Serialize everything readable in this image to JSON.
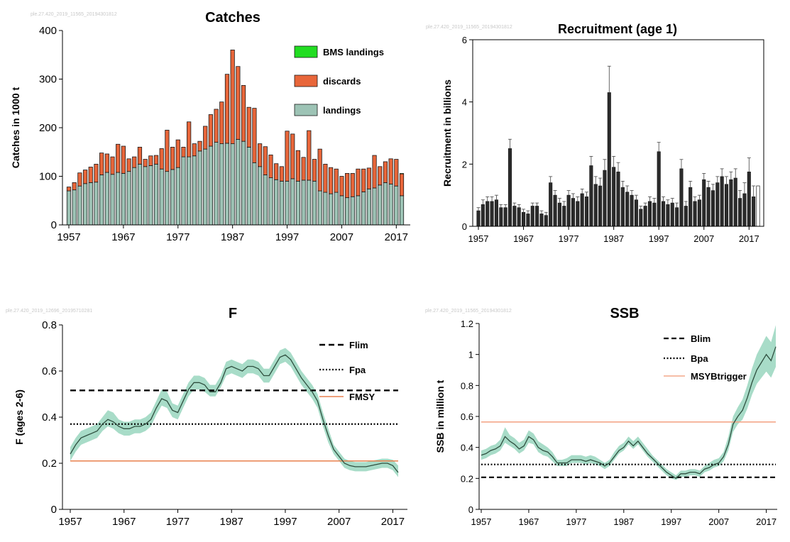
{
  "colors": {
    "landings": "#9dc3b5",
    "discards": "#e8663a",
    "bms": "#22dd22",
    "recruitment": "#2b2b2b",
    "band": "#a8dcc8",
    "line": "#2f4f3f",
    "reference": "#e8804e",
    "reference_light": "#f4a78a"
  },
  "chart_data": [
    {
      "type": "bar",
      "title": "Catches",
      "watermark": "ple.27.420_2019_11565_20194301812",
      "ylabel": "Catches in 1000 t",
      "xlabel": "",
      "ylim": [
        0,
        400
      ],
      "yticks": [
        "0",
        "100",
        "200",
        "300",
        "400"
      ],
      "xticks": [
        "1957",
        "1967",
        "1977",
        "1987",
        "1997",
        "2007",
        "2017"
      ],
      "legend": {
        "position": "top-right",
        "entries": [
          "BMS landings",
          "discards",
          "landings"
        ]
      },
      "x": [
        1957,
        1958,
        1959,
        1960,
        1961,
        1962,
        1963,
        1964,
        1965,
        1966,
        1967,
        1968,
        1969,
        1970,
        1971,
        1972,
        1973,
        1974,
        1975,
        1976,
        1977,
        1978,
        1979,
        1980,
        1981,
        1982,
        1983,
        1984,
        1985,
        1986,
        1987,
        1988,
        1989,
        1990,
        1991,
        1992,
        1993,
        1994,
        1995,
        1996,
        1997,
        1998,
        1999,
        2000,
        2001,
        2002,
        2003,
        2004,
        2005,
        2006,
        2007,
        2008,
        2009,
        2010,
        2011,
        2012,
        2013,
        2014,
        2015,
        2016,
        2017,
        2018
      ],
      "series": [
        {
          "name": "landings",
          "values": [
            70,
            72,
            80,
            85,
            87,
            88,
            103,
            108,
            104,
            108,
            106,
            110,
            118,
            125,
            120,
            122,
            125,
            115,
            110,
            114,
            118,
            140,
            140,
            142,
            152,
            156,
            162,
            170,
            167,
            168,
            167,
            176,
            172,
            160,
            128,
            120,
            103,
            97,
            93,
            90,
            90,
            95,
            90,
            92,
            92,
            90,
            70,
            67,
            64,
            67,
            60,
            56,
            58,
            60,
            68,
            74,
            76,
            82,
            87,
            84,
            80,
            60
          ]
        },
        {
          "name": "discards",
          "values": [
            8,
            15,
            27,
            28,
            32,
            37,
            45,
            38,
            36,
            58,
            56,
            26,
            22,
            35,
            15,
            20,
            18,
            42,
            85,
            46,
            57,
            20,
            72,
            25,
            20,
            47,
            65,
            68,
            86,
            142,
            193,
            150,
            115,
            82,
            112,
            47,
            58,
            47,
            33,
            30,
            103,
            92,
            63,
            47,
            102,
            45,
            86,
            58,
            54,
            48,
            40,
            50,
            48,
            55,
            47,
            43,
            67,
            38,
            43,
            52,
            55,
            45
          ]
        },
        {
          "name": "BMS landings",
          "values": [
            0,
            0,
            0,
            0,
            0,
            0,
            0,
            0,
            0,
            0,
            0,
            0,
            0,
            0,
            0,
            0,
            0,
            0,
            0,
            0,
            0,
            0,
            0,
            0,
            0,
            0,
            0,
            0,
            0,
            0,
            0,
            0,
            0,
            0,
            0,
            0,
            0,
            0,
            0,
            0,
            0,
            0,
            0,
            0,
            0,
            0,
            0,
            0,
            0,
            0,
            0,
            0,
            0,
            0,
            0,
            0,
            0,
            0,
            0,
            0,
            0,
            1
          ]
        }
      ]
    },
    {
      "type": "bar",
      "title": "Recruitment (age 1)",
      "watermark": "ple.27.420_2019_11565_20194301812",
      "ylabel": "Recruitment in billions",
      "xlabel": "",
      "ylim": [
        0,
        6
      ],
      "yticks": [
        "0",
        "2",
        "4",
        "6"
      ],
      "xticks": [
        "1957",
        "1967",
        "1977",
        "1987",
        "1997",
        "2007",
        "2017"
      ],
      "x": [
        1957,
        1958,
        1959,
        1960,
        1961,
        1962,
        1963,
        1964,
        1965,
        1966,
        1967,
        1968,
        1969,
        1970,
        1971,
        1972,
        1973,
        1974,
        1975,
        1976,
        1977,
        1978,
        1979,
        1980,
        1981,
        1982,
        1983,
        1984,
        1985,
        1986,
        1987,
        1988,
        1989,
        1990,
        1991,
        1992,
        1993,
        1994,
        1995,
        1996,
        1997,
        1998,
        1999,
        2000,
        2001,
        2002,
        2003,
        2004,
        2005,
        2006,
        2007,
        2008,
        2009,
        2010,
        2011,
        2012,
        2013,
        2014,
        2015,
        2016,
        2017,
        2018,
        2019
      ],
      "values": [
        0.5,
        0.7,
        0.8,
        0.8,
        0.85,
        0.6,
        0.6,
        2.5,
        0.65,
        0.6,
        0.45,
        0.4,
        0.65,
        0.65,
        0.4,
        0.35,
        1.4,
        1.0,
        0.75,
        0.65,
        1.0,
        0.9,
        0.8,
        1.05,
        0.95,
        1.95,
        1.35,
        1.3,
        1.8,
        4.3,
        1.9,
        1.75,
        1.25,
        1.1,
        1.0,
        0.85,
        0.55,
        0.65,
        0.8,
        0.75,
        2.4,
        0.8,
        0.7,
        0.75,
        0.6,
        1.85,
        0.65,
        1.25,
        0.8,
        0.85,
        1.5,
        1.25,
        1.15,
        1.4,
        1.6,
        1.35,
        1.5,
        1.55,
        0.9,
        1.05,
        1.75,
        0.95,
        1.3
      ],
      "upper": [
        0.6,
        0.85,
        0.95,
        0.95,
        1.0,
        0.7,
        0.7,
        2.8,
        0.75,
        0.7,
        0.55,
        0.5,
        0.75,
        0.75,
        0.5,
        0.45,
        1.6,
        1.15,
        0.9,
        0.8,
        1.15,
        1.05,
        0.95,
        1.2,
        1.1,
        2.25,
        1.6,
        1.55,
        2.15,
        5.15,
        2.25,
        2.05,
        1.45,
        1.3,
        1.15,
        1.0,
        0.65,
        0.75,
        0.95,
        0.9,
        2.7,
        0.95,
        0.85,
        0.9,
        0.75,
        2.15,
        0.8,
        1.45,
        0.95,
        1.0,
        1.7,
        1.45,
        1.35,
        1.6,
        1.85,
        1.6,
        1.75,
        1.85,
        1.15,
        1.4,
        2.2,
        1.3,
        null
      ]
    },
    {
      "type": "line",
      "title": "F",
      "watermark": "ple.27.420_2019_12696_20195710281",
      "ylabel": "F (ages 2-6)",
      "xlabel": "",
      "ylim": [
        0,
        0.8
      ],
      "yticks": [
        "0",
        "0.2",
        "0.4",
        "0.6",
        "0.8"
      ],
      "xticks": [
        "1957",
        "1967",
        "1977",
        "1987",
        "1997",
        "2007",
        "2017"
      ],
      "legend": {
        "position": "top-right",
        "entries": [
          "Flim",
          "Fpa",
          "FMSY"
        ]
      },
      "reference_lines": {
        "Flim": 0.516,
        "Fpa": 0.37,
        "FMSY": 0.21
      },
      "x": [
        1957,
        1958,
        1959,
        1960,
        1961,
        1962,
        1963,
        1964,
        1965,
        1966,
        1967,
        1968,
        1969,
        1970,
        1971,
        1972,
        1973,
        1974,
        1975,
        1976,
        1977,
        1978,
        1979,
        1980,
        1981,
        1982,
        1983,
        1984,
        1985,
        1986,
        1987,
        1988,
        1989,
        1990,
        1991,
        1992,
        1993,
        1994,
        1995,
        1996,
        1997,
        1998,
        1999,
        2000,
        2001,
        2002,
        2003,
        2004,
        2005,
        2006,
        2007,
        2008,
        2009,
        2010,
        2011,
        2012,
        2013,
        2014,
        2015,
        2016,
        2017,
        2018
      ],
      "values": [
        0.24,
        0.28,
        0.31,
        0.32,
        0.33,
        0.34,
        0.37,
        0.39,
        0.38,
        0.36,
        0.35,
        0.35,
        0.36,
        0.36,
        0.37,
        0.39,
        0.44,
        0.48,
        0.47,
        0.43,
        0.42,
        0.47,
        0.52,
        0.55,
        0.55,
        0.54,
        0.51,
        0.51,
        0.55,
        0.61,
        0.62,
        0.61,
        0.6,
        0.62,
        0.62,
        0.61,
        0.58,
        0.58,
        0.62,
        0.66,
        0.67,
        0.65,
        0.61,
        0.57,
        0.54,
        0.51,
        0.47,
        0.39,
        0.32,
        0.26,
        0.23,
        0.2,
        0.19,
        0.185,
        0.185,
        0.185,
        0.19,
        0.195,
        0.2,
        0.2,
        0.19,
        0.16
      ],
      "lower": [
        0.21,
        0.25,
        0.28,
        0.29,
        0.3,
        0.31,
        0.34,
        0.36,
        0.35,
        0.33,
        0.32,
        0.32,
        0.33,
        0.33,
        0.34,
        0.36,
        0.41,
        0.45,
        0.44,
        0.4,
        0.39,
        0.44,
        0.49,
        0.52,
        0.52,
        0.51,
        0.49,
        0.49,
        0.53,
        0.58,
        0.59,
        0.58,
        0.57,
        0.59,
        0.59,
        0.58,
        0.55,
        0.55,
        0.59,
        0.63,
        0.64,
        0.62,
        0.58,
        0.54,
        0.51,
        0.48,
        0.44,
        0.36,
        0.29,
        0.24,
        0.21,
        0.18,
        0.17,
        0.165,
        0.165,
        0.165,
        0.17,
        0.175,
        0.18,
        0.18,
        0.17,
        0.14
      ],
      "upper": [
        0.27,
        0.31,
        0.34,
        0.35,
        0.36,
        0.37,
        0.4,
        0.43,
        0.42,
        0.39,
        0.38,
        0.38,
        0.39,
        0.39,
        0.4,
        0.42,
        0.47,
        0.52,
        0.51,
        0.46,
        0.45,
        0.5,
        0.55,
        0.58,
        0.58,
        0.57,
        0.54,
        0.54,
        0.58,
        0.64,
        0.65,
        0.64,
        0.63,
        0.65,
        0.65,
        0.64,
        0.61,
        0.61,
        0.65,
        0.69,
        0.7,
        0.68,
        0.64,
        0.6,
        0.57,
        0.54,
        0.5,
        0.42,
        0.35,
        0.28,
        0.25,
        0.22,
        0.21,
        0.205,
        0.205,
        0.205,
        0.21,
        0.215,
        0.22,
        0.22,
        0.215,
        0.19
      ]
    },
    {
      "type": "line",
      "title": "SSB",
      "watermark": "ple.27.420_2019_11565_20194301812",
      "ylabel": "SSB in million t",
      "xlabel": "",
      "ylim": [
        0,
        1.2
      ],
      "yticks": [
        "0",
        "0.2",
        "0.4",
        "0.6",
        "0.8",
        "1",
        "1.2"
      ],
      "xticks": [
        "1957",
        "1967",
        "1977",
        "1987",
        "1997",
        "2007",
        "2017"
      ],
      "legend": {
        "position": "top-right",
        "entries": [
          "Blim",
          "Bpa",
          "MSYBtrigger"
        ]
      },
      "reference_lines": {
        "Blim": 0.207,
        "Bpa": 0.29,
        "MSYBtrigger": 0.564
      },
      "x": [
        1957,
        1958,
        1959,
        1960,
        1961,
        1962,
        1963,
        1964,
        1965,
        1966,
        1967,
        1968,
        1969,
        1970,
        1971,
        1972,
        1973,
        1974,
        1975,
        1976,
        1977,
        1978,
        1979,
        1980,
        1981,
        1982,
        1983,
        1984,
        1985,
        1986,
        1987,
        1988,
        1989,
        1990,
        1991,
        1992,
        1993,
        1994,
        1995,
        1996,
        1997,
        1998,
        1999,
        2000,
        2001,
        2002,
        2003,
        2004,
        2005,
        2006,
        2007,
        2008,
        2009,
        2010,
        2011,
        2012,
        2013,
        2014,
        2015,
        2016,
        2017,
        2018,
        2019
      ],
      "values": [
        0.35,
        0.36,
        0.38,
        0.39,
        0.41,
        0.47,
        0.44,
        0.42,
        0.39,
        0.41,
        0.47,
        0.45,
        0.4,
        0.38,
        0.37,
        0.34,
        0.3,
        0.3,
        0.3,
        0.32,
        0.32,
        0.32,
        0.31,
        0.32,
        0.31,
        0.3,
        0.28,
        0.3,
        0.34,
        0.38,
        0.4,
        0.44,
        0.41,
        0.44,
        0.4,
        0.36,
        0.33,
        0.3,
        0.27,
        0.24,
        0.22,
        0.2,
        0.23,
        0.23,
        0.24,
        0.24,
        0.23,
        0.26,
        0.27,
        0.29,
        0.3,
        0.34,
        0.42,
        0.55,
        0.6,
        0.64,
        0.72,
        0.82,
        0.9,
        0.95,
        1.0,
        0.96,
        1.05
      ],
      "lower": [
        0.32,
        0.33,
        0.35,
        0.36,
        0.38,
        0.43,
        0.41,
        0.39,
        0.36,
        0.38,
        0.43,
        0.42,
        0.37,
        0.35,
        0.34,
        0.31,
        0.28,
        0.28,
        0.28,
        0.3,
        0.3,
        0.3,
        0.29,
        0.3,
        0.29,
        0.28,
        0.26,
        0.28,
        0.32,
        0.36,
        0.38,
        0.42,
        0.39,
        0.42,
        0.38,
        0.34,
        0.31,
        0.28,
        0.25,
        0.22,
        0.2,
        0.19,
        0.21,
        0.21,
        0.22,
        0.22,
        0.21,
        0.24,
        0.25,
        0.27,
        0.28,
        0.31,
        0.38,
        0.5,
        0.55,
        0.58,
        0.65,
        0.74,
        0.81,
        0.85,
        0.89,
        0.85,
        0.92
      ],
      "upper": [
        0.38,
        0.39,
        0.41,
        0.42,
        0.45,
        0.53,
        0.48,
        0.46,
        0.43,
        0.45,
        0.51,
        0.49,
        0.44,
        0.42,
        0.4,
        0.37,
        0.32,
        0.32,
        0.33,
        0.35,
        0.35,
        0.35,
        0.34,
        0.35,
        0.34,
        0.32,
        0.3,
        0.32,
        0.37,
        0.41,
        0.43,
        0.47,
        0.44,
        0.47,
        0.43,
        0.39,
        0.35,
        0.32,
        0.29,
        0.26,
        0.24,
        0.22,
        0.25,
        0.25,
        0.26,
        0.26,
        0.25,
        0.28,
        0.3,
        0.32,
        0.33,
        0.37,
        0.47,
        0.6,
        0.66,
        0.71,
        0.8,
        0.91,
        1.0,
        1.06,
        1.12,
        1.08,
        1.19
      ]
    }
  ]
}
